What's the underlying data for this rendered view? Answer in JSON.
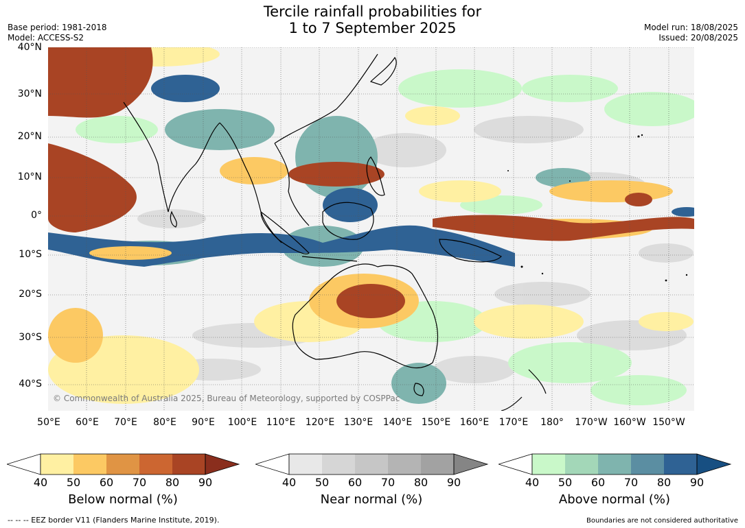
{
  "title": {
    "line1": "Tercile rainfall probabilities for",
    "line2": "1 to 7 September 2025"
  },
  "meta": {
    "base_period": "Base period: 1981-2018",
    "model": "Model: ACCESS-S2",
    "model_run": "Model run: 18/08/2025",
    "issued": "Issued: 20/08/2025"
  },
  "map": {
    "latitude_labels": [
      "40°N",
      "30°N",
      "20°N",
      "10°N",
      "0°",
      "10°S",
      "20°S",
      "30°S",
      "40°S"
    ],
    "longitude_labels": [
      "50°E",
      "60°E",
      "70°E",
      "80°E",
      "90°E",
      "100°E",
      "110°E",
      "120°E",
      "130°E",
      "140°E",
      "150°E",
      "160°E",
      "170°E",
      "180°",
      "170°W",
      "160°W",
      "150°W"
    ],
    "copyright": "© Commonwealth of Australia 2025, Bureau of Meteorology, supported by COSPPac"
  },
  "colorbars": [
    {
      "name": "Below normal (%)",
      "ticks": [
        "40",
        "50",
        "60",
        "70",
        "80",
        "90"
      ],
      "colors": [
        "#fff0a2",
        "#fcc963",
        "#e09444",
        "#cc6631",
        "#a94424",
        "#8a2e1d"
      ]
    },
    {
      "name": "Near normal (%)",
      "ticks": [
        "40",
        "50",
        "60",
        "70",
        "80",
        "90"
      ],
      "colors": [
        "#e8e8e8",
        "#d6d6d6",
        "#c6c6c6",
        "#b4b4b4",
        "#a2a2a2",
        "#858585"
      ]
    },
    {
      "name": "Above normal (%)",
      "ticks": [
        "40",
        "50",
        "60",
        "70",
        "80",
        "90"
      ],
      "colors": [
        "#c9f8c9",
        "#a3d7b8",
        "#7fb4ae",
        "#5b8ea2",
        "#2f6294",
        "#174f82"
      ]
    }
  ],
  "footer": {
    "eez": "--  --  -- EEZ border V11 (Flanders Marine Institute, 2019).",
    "disclaimer": "Boundaries are not considered authoritative"
  }
}
